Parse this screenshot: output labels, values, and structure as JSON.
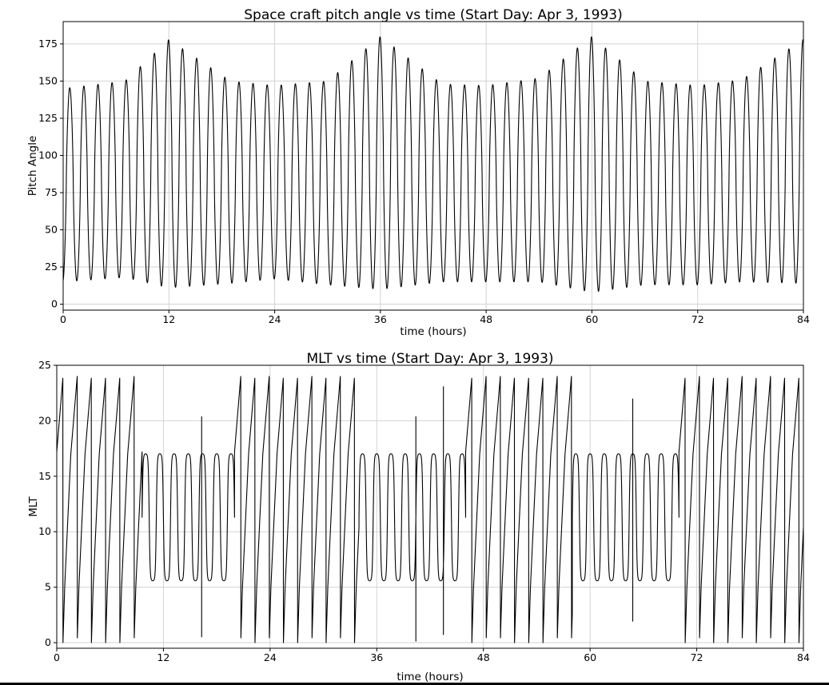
{
  "chart_data": [
    {
      "type": "line",
      "title": "Space craft pitch angle vs time (Start Day: Apr 3, 1993)",
      "xlabel": "time (hours)",
      "ylabel": "Pitch Angle",
      "xlim": [
        0,
        84
      ],
      "ylim": [
        -4,
        190
      ],
      "xticks": [
        0,
        12,
        24,
        36,
        48,
        60,
        72,
        84
      ],
      "yticks": [
        0,
        25,
        50,
        75,
        100,
        125,
        150,
        175
      ],
      "grid": true,
      "period_hours": 1.6,
      "series": [
        {
          "color": "#000000",
          "x": [
            0,
            7,
            12,
            19,
            24,
            30,
            36,
            43,
            48,
            54,
            60,
            66,
            72,
            77,
            84
          ],
          "max": [
            145,
            150,
            178,
            150,
            147,
            150,
            180,
            148,
            147,
            152,
            180,
            150,
            147,
            151,
            178
          ],
          "min": [
            15,
            18,
            11,
            14,
            17,
            13,
            10,
            15,
            15,
            15,
            8,
            13,
            13,
            15,
            14
          ]
        }
      ]
    },
    {
      "type": "line",
      "title": "MLT vs time (Start Day: Apr 3, 1993)",
      "xlabel": "time (hours)",
      "ylabel": "MLT",
      "xlim": [
        0,
        84
      ],
      "ylim": [
        -0.5,
        25
      ],
      "xticks": [
        0,
        12,
        24,
        36,
        48,
        60,
        72,
        84
      ],
      "yticks": [
        0,
        5,
        10,
        15,
        20,
        25
      ],
      "grid": true,
      "series": [
        {
          "color": "#000000",
          "segments": [
            {
              "start": 0,
              "end": 9.6,
              "mode": "wrap",
              "period": 1.6
            },
            {
              "start": 9.6,
              "end": 20,
              "mode": "osc",
              "period": 1.6
            },
            {
              "start": 20,
              "end": 34,
              "mode": "wrap",
              "period": 1.6
            },
            {
              "start": 34,
              "end": 46,
              "mode": "osc",
              "period": 1.6
            },
            {
              "start": 46,
              "end": 58,
              "mode": "wrap",
              "period": 1.6
            },
            {
              "start": 58,
              "end": 70,
              "mode": "osc",
              "period": 1.6
            },
            {
              "start": 70,
              "end": 84,
              "mode": "wrap",
              "period": 1.6
            }
          ],
          "spikes": [
            {
              "x": 16.3,
              "y": 20.4
            },
            {
              "x": 16.3,
              "y": 0.5
            },
            {
              "x": 40.4,
              "y": 20.4
            },
            {
              "x": 40.4,
              "y": 0.1
            },
            {
              "x": 43.5,
              "y": 23.1
            },
            {
              "x": 43.5,
              "y": 0.7
            },
            {
              "x": 64.8,
              "y": 22.0
            },
            {
              "x": 64.8,
              "y": 1.9
            }
          ]
        }
      ]
    }
  ]
}
